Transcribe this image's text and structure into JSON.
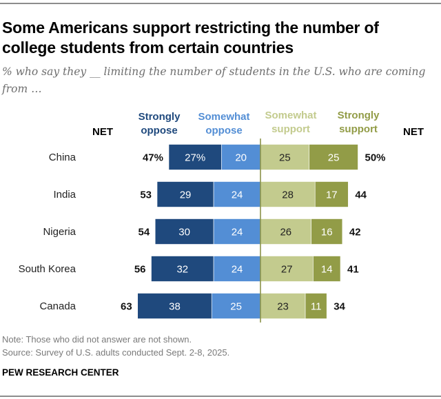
{
  "header": {
    "title": "Some Americans support restricting the number of college students from certain countries",
    "subtitle": "% who say they __ limiting the number of students in the U.S. who are coming from …"
  },
  "legend": {
    "net_left": "NET",
    "net_right": "NET",
    "strongly_oppose": [
      "Strongly",
      "oppose"
    ],
    "somewhat_oppose": [
      "Somewhat",
      "oppose"
    ],
    "somewhat_support": [
      "Somewhat",
      "support"
    ],
    "strongly_support": [
      "Strongly",
      "support"
    ]
  },
  "colors": {
    "strongly_oppose": "#1f497d",
    "somewhat_oppose": "#538ed5",
    "somewhat_support": "#c3cb8e",
    "strongly_support": "#929c47",
    "center_line": "#8a934a"
  },
  "chart_data": {
    "type": "bar",
    "orientation": "horizontal-diverging-stacked",
    "title": "Some Americans support restricting the number of college students from certain countries",
    "subtitle": "% who say they __ limiting the number of students in the U.S. who are coming from …",
    "categories": [
      "China",
      "India",
      "Nigeria",
      "South Korea",
      "Canada"
    ],
    "series": [
      {
        "name": "Strongly oppose",
        "side": "left",
        "values": [
          27,
          29,
          30,
          32,
          38
        ]
      },
      {
        "name": "Somewhat oppose",
        "side": "left",
        "values": [
          20,
          24,
          24,
          24,
          25
        ]
      },
      {
        "name": "Somewhat support",
        "side": "right",
        "values": [
          25,
          28,
          26,
          27,
          23
        ]
      },
      {
        "name": "Strongly support",
        "side": "right",
        "values": [
          25,
          17,
          16,
          14,
          11
        ]
      }
    ],
    "net_oppose": [
      47,
      53,
      54,
      56,
      63
    ],
    "net_support": [
      50,
      44,
      42,
      41,
      34
    ],
    "first_row_percent_sign": true,
    "xlabel": "",
    "ylabel": "",
    "grid": false,
    "legend_position": "top"
  },
  "footer": {
    "note": "Note: Those who did not answer are not shown.",
    "source": "Source: Survey of U.S. adults conducted Sept. 2-8, 2025.",
    "brand": "PEW RESEARCH CENTER"
  }
}
